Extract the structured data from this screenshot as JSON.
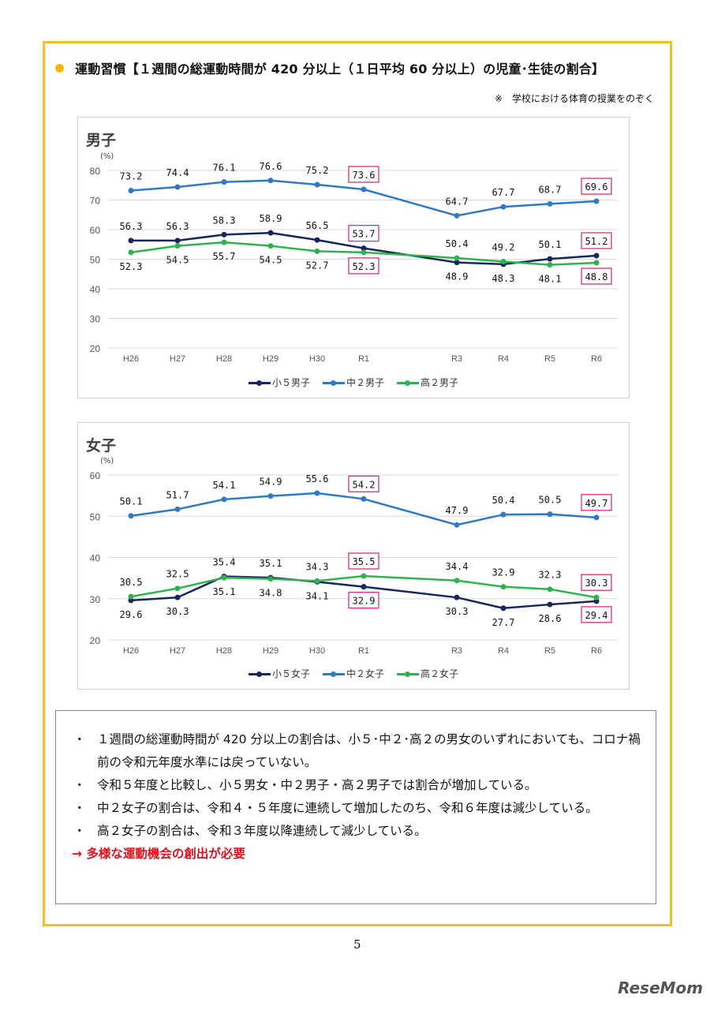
{
  "header": {
    "title": "運動習慣【１週間の総運動時間が 420 分以上（１日平均 60 分以上）の児童･生徒の割合】",
    "note": "※　学校における体育の授業をのぞく",
    "bullet_color": "#f5b800"
  },
  "chart_data": [
    {
      "type": "line",
      "title": "男子",
      "ylabel": "(%)",
      "ylim": [
        20,
        80
      ],
      "yticks": [
        20,
        30,
        40,
        50,
        60,
        70,
        80
      ],
      "grid": true,
      "legend": "bottom",
      "categories": [
        "H26",
        "H27",
        "H28",
        "H29",
        "H30",
        "R1",
        "",
        "R3",
        "R4",
        "R5",
        "R6"
      ],
      "highlight": [
        "R1",
        "R6"
      ],
      "series": [
        {
          "name": "小５男子",
          "color": "#17275e",
          "values": [
            56.3,
            56.3,
            58.3,
            58.9,
            56.5,
            53.7,
            null,
            48.9,
            48.3,
            50.1,
            51.2
          ],
          "labels": [
            "56.3",
            "56.3",
            "58.3",
            "58.9",
            "56.5",
            "53.7",
            "",
            "48.9",
            "48.3",
            "50.1",
            "51.2"
          ]
        },
        {
          "name": "中２男子",
          "color": "#2e7ac4",
          "values": [
            73.2,
            74.4,
            76.1,
            76.6,
            75.2,
            73.6,
            null,
            64.7,
            67.7,
            68.7,
            69.6
          ],
          "labels": [
            "73.2",
            "74.4",
            "76.1",
            "76.6",
            "75.2",
            "73.6",
            "",
            "64.7",
            "67.7",
            "68.7",
            "69.6"
          ]
        },
        {
          "name": "高２男子",
          "color": "#2db34e",
          "values": [
            52.3,
            54.5,
            55.7,
            54.5,
            52.7,
            52.3,
            null,
            50.4,
            49.2,
            48.1,
            48.8
          ],
          "labels": [
            "52.3",
            "54.5",
            "55.7",
            "54.5",
            "52.7",
            "52.3",
            "",
            "50.4",
            "49.2",
            "48.1",
            "48.8"
          ]
        }
      ]
    },
    {
      "type": "line",
      "title": "女子",
      "ylabel": "(%)",
      "ylim": [
        20,
        60
      ],
      "yticks": [
        20,
        30,
        40,
        50,
        60
      ],
      "grid": true,
      "legend": "bottom",
      "categories": [
        "H26",
        "H27",
        "H28",
        "H29",
        "H30",
        "R1",
        "",
        "R3",
        "R4",
        "R5",
        "R6"
      ],
      "highlight": [
        "R1",
        "R6"
      ],
      "series": [
        {
          "name": "小５女子",
          "color": "#17275e",
          "values": [
            29.6,
            30.3,
            35.4,
            35.1,
            34.1,
            32.9,
            null,
            30.3,
            27.7,
            28.6,
            29.4
          ],
          "labels": [
            "29.6",
            "30.3",
            "35.4",
            "35.1",
            "34.1",
            "32.9",
            "",
            "30.3",
            "27.7",
            "28.6",
            "29.4"
          ]
        },
        {
          "name": "中２女子",
          "color": "#2e7ac4",
          "values": [
            50.1,
            51.7,
            54.1,
            54.9,
            55.6,
            54.2,
            null,
            47.9,
            50.4,
            50.5,
            49.7
          ],
          "labels": [
            "50.1",
            "51.7",
            "54.1",
            "54.9",
            "55.6",
            "54.2",
            "",
            "47.9",
            "50.4",
            "50.5",
            "49.7"
          ]
        },
        {
          "name": "高２女子",
          "color": "#2db34e",
          "values": [
            30.5,
            32.5,
            35.1,
            34.8,
            34.3,
            35.5,
            null,
            34.4,
            32.9,
            32.3,
            30.3
          ],
          "labels": [
            "30.5",
            "32.5",
            "35.1",
            "34.8",
            "34.3",
            "35.5",
            "",
            "34.4",
            "32.9",
            "32.3",
            "30.3"
          ]
        }
      ]
    }
  ],
  "summary": {
    "bullet": "・",
    "items": [
      "１週間の総運動時間が 420 分以上の割合は、小５･中２･高２の男女のいずれにおいても、コロナ禍前の令和元年度水準には戻っていない。",
      "令和５年度と比較し、小５男女・中２男子・高２男子では割合が増加している。",
      "中２女子の割合は、令和４・５年度に連続して増加したのち、令和６年度は減少している。",
      "高２女子の割合は、令和３年度以降連続して減少している。"
    ],
    "conclusion": "→ 多様な運動機会の創出が必要",
    "conclusion_color": "#e0101a"
  },
  "page_number": "5",
  "watermark": "ReseMom",
  "highlight_color": "#d6307a"
}
